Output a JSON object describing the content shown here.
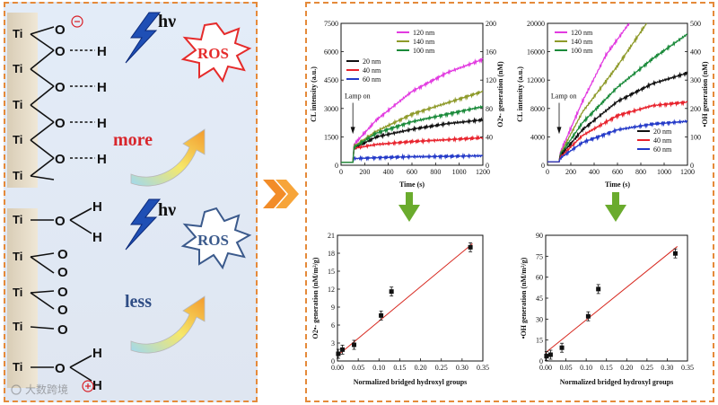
{
  "left": {
    "top_surface": {
      "ti_labels": [
        "Ti",
        "Ti",
        "Ti",
        "Ti",
        "Ti"
      ],
      "o_labels": [
        "O",
        "O",
        "O",
        "O",
        "O"
      ],
      "h_labels": [
        "H",
        "H",
        "H",
        "H"
      ],
      "charge": "⊖"
    },
    "bottom_surface": {
      "ti_labels": [
        "Ti",
        "Ti",
        "Ti",
        "Ti",
        "Ti"
      ],
      "o_labels": [
        "O",
        "O",
        "O",
        "O",
        "O",
        "O",
        "O",
        "O"
      ],
      "h_labels": [
        "H",
        "H",
        "H",
        "H"
      ],
      "charge": "⊕"
    },
    "hv": "hν",
    "ros": "ROS",
    "more": "more",
    "less": "less",
    "watermark": "大数跨境",
    "colors": {
      "ros_top": "#e52b2b",
      "ros_bottom": "#3b5a8c",
      "more": "#d8262c",
      "less": "#2f4d85"
    }
  },
  "chart_data": [
    {
      "type": "line",
      "title": "",
      "xlabel": "Time (s)",
      "ylabel": "CL intensity (a.u.)",
      "y2label": "O2•- generation (nM)",
      "xlim": [
        0,
        1200
      ],
      "ylim": [
        0,
        7500
      ],
      "y2lim": [
        0,
        200
      ],
      "xticks": [
        0,
        200,
        400,
        600,
        800,
        1000,
        1200
      ],
      "yticks": [
        0,
        1500,
        3000,
        4500,
        6000,
        7500
      ],
      "y2ticks": [
        0,
        40,
        80,
        120,
        160,
        200
      ],
      "annotation": "Lamp on",
      "series": [
        {
          "name": "20 nm",
          "color": "#111111",
          "x": [
            0,
            100,
            110,
            300,
            600,
            900,
            1200
          ],
          "y": [
            150,
            150,
            900,
            1500,
            1900,
            2200,
            2400
          ]
        },
        {
          "name": "40 nm",
          "color": "#e8232d",
          "x": [
            0,
            100,
            110,
            300,
            600,
            900,
            1200
          ],
          "y": [
            150,
            150,
            900,
            1100,
            1250,
            1350,
            1450
          ]
        },
        {
          "name": "60 nm",
          "color": "#2339c8",
          "x": [
            0,
            100,
            110,
            300,
            600,
            900,
            1200
          ],
          "y": [
            150,
            150,
            350,
            400,
            450,
            470,
            500
          ]
        },
        {
          "name": "120 nm",
          "color": "#e23be0",
          "x": [
            0,
            100,
            110,
            300,
            600,
            900,
            1200
          ],
          "y": [
            150,
            150,
            1100,
            2400,
            3900,
            4900,
            5600
          ]
        },
        {
          "name": "140 nm",
          "color": "#8e9a2a",
          "x": [
            0,
            100,
            110,
            300,
            600,
            900,
            1200
          ],
          "y": [
            150,
            150,
            1000,
            1800,
            2700,
            3300,
            3900
          ]
        },
        {
          "name": "100 nm",
          "color": "#1a8a3a",
          "x": [
            0,
            100,
            110,
            300,
            600,
            900,
            1200
          ],
          "y": [
            150,
            150,
            950,
            1700,
            2300,
            2700,
            3100
          ]
        }
      ]
    },
    {
      "type": "line",
      "title": "",
      "xlabel": "Time (s)",
      "ylabel": "CL intensity (a.u.)",
      "y2label": "•OH generation (nM)",
      "xlim": [
        0,
        1200
      ],
      "ylim": [
        0,
        20000
      ],
      "y2lim": [
        0,
        500
      ],
      "xticks": [
        0,
        200,
        400,
        600,
        800,
        1000,
        1200
      ],
      "yticks": [
        0,
        4000,
        8000,
        12000,
        16000,
        20000
      ],
      "y2ticks": [
        0,
        100,
        200,
        300,
        400,
        500
      ],
      "annotation": "Lamp on",
      "series": [
        {
          "name": "120 nm",
          "color": "#e23be0",
          "x": [
            0,
            100,
            110,
            300,
            500,
            700
          ],
          "y": [
            500,
            500,
            1800,
            9000,
            15500,
            20000
          ]
        },
        {
          "name": "140 nm",
          "color": "#8e9a2a",
          "x": [
            0,
            100,
            110,
            300,
            600,
            850
          ],
          "y": [
            500,
            500,
            1600,
            7500,
            14000,
            20000
          ]
        },
        {
          "name": "100 nm",
          "color": "#1a8a3a",
          "x": [
            0,
            100,
            110,
            300,
            600,
            900,
            1200
          ],
          "y": [
            500,
            500,
            1500,
            6000,
            11000,
            15000,
            18500
          ]
        },
        {
          "name": "20 nm",
          "color": "#111111",
          "x": [
            0,
            100,
            110,
            300,
            600,
            900,
            1200
          ],
          "y": [
            500,
            500,
            1300,
            5000,
            9000,
            11500,
            13000
          ]
        },
        {
          "name": "40 nm",
          "color": "#e8232d",
          "x": [
            0,
            100,
            110,
            300,
            600,
            900,
            1200
          ],
          "y": [
            500,
            500,
            1100,
            4200,
            7000,
            8400,
            8900
          ]
        },
        {
          "name": "60 nm",
          "color": "#2339c8",
          "x": [
            0,
            100,
            110,
            300,
            600,
            900,
            1200
          ],
          "y": [
            500,
            500,
            1000,
            3200,
            5000,
            5800,
            6200
          ]
        }
      ]
    },
    {
      "type": "scatter",
      "title": "",
      "xlabel": "Normalized bridged hydroxyl groups",
      "ylabel": "O2•- generation (nM/m²/g)",
      "xlim": [
        0,
        0.35
      ],
      "ylim": [
        0,
        21
      ],
      "xticks": [
        0.0,
        0.05,
        0.1,
        0.15,
        0.2,
        0.25,
        0.3,
        0.35
      ],
      "yticks": [
        0,
        3,
        6,
        9,
        12,
        15,
        18,
        21
      ],
      "points": [
        {
          "x": 0.002,
          "y": 1.2
        },
        {
          "x": 0.012,
          "y": 1.9
        },
        {
          "x": 0.04,
          "y": 2.7
        },
        {
          "x": 0.105,
          "y": 7.6
        },
        {
          "x": 0.13,
          "y": 11.6
        },
        {
          "x": 0.32,
          "y": 19.0
        }
      ],
      "fit": [
        [
          0,
          0.9
        ],
        [
          0.325,
          19.6
        ]
      ]
    },
    {
      "type": "scatter",
      "title": "",
      "xlabel": "Normalized bridged hydroxyl groups",
      "ylabel": "•OH generation (nM/m²/g)",
      "xlim": [
        0,
        0.35
      ],
      "ylim": [
        0,
        90
      ],
      "xticks": [
        0.0,
        0.05,
        0.1,
        0.15,
        0.2,
        0.25,
        0.3,
        0.35
      ],
      "yticks": [
        0,
        15,
        30,
        45,
        60,
        75,
        90
      ],
      "points": [
        {
          "x": 0.002,
          "y": 3.5
        },
        {
          "x": 0.012,
          "y": 4.5
        },
        {
          "x": 0.04,
          "y": 9.5
        },
        {
          "x": 0.105,
          "y": 32
        },
        {
          "x": 0.13,
          "y": 51.5
        },
        {
          "x": 0.32,
          "y": 77
        }
      ],
      "fit": [
        [
          0,
          6
        ],
        [
          0.325,
          82
        ]
      ]
    }
  ],
  "colors": {
    "arrow_green": "#6aab2d",
    "arrow_orange": "#f28c28",
    "border_orange": "#e58a3a",
    "fit_line": "#d7281f"
  }
}
